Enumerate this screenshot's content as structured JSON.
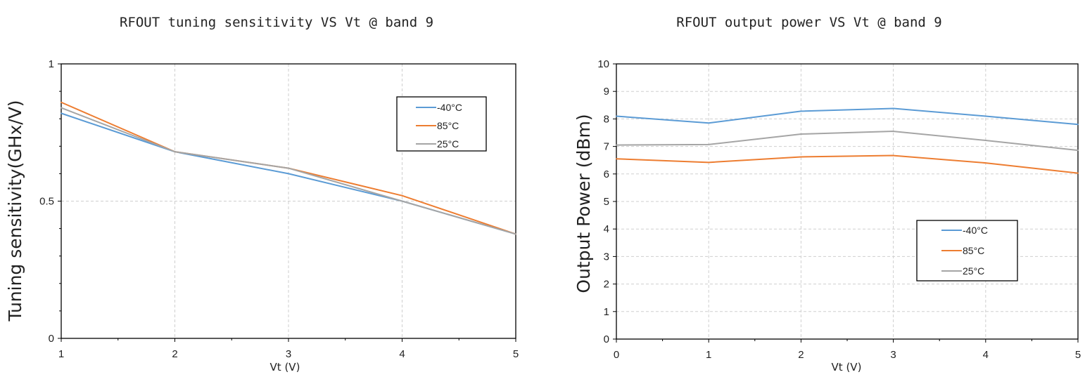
{
  "chart_data": [
    {
      "type": "line",
      "title": "RFOUT tuning sensitivity VS Vt @ band 9",
      "xlabel": "Vt (V)",
      "ylabel": "Tuning sensitivity(GHx/V)",
      "x": [
        1,
        2,
        3,
        4,
        5
      ],
      "xlim": [
        1,
        5
      ],
      "ylim": [
        0,
        1
      ],
      "x_ticks": [
        "1",
        "2",
        "3",
        "4",
        "5"
      ],
      "y_ticks": [
        "0",
        "0.5",
        "1"
      ],
      "grid": true,
      "legend_position": "top-right",
      "series": [
        {
          "name": "-40°C",
          "color": "#5b9bd5",
          "values": [
            0.82,
            0.68,
            0.6,
            0.5,
            0.38
          ]
        },
        {
          "name": "85°C",
          "color": "#ed7d31",
          "values": [
            0.86,
            0.68,
            0.62,
            0.52,
            0.38
          ]
        },
        {
          "name": "25°C",
          "color": "#a5a5a5",
          "values": [
            0.84,
            0.68,
            0.62,
            0.5,
            0.38
          ]
        }
      ]
    },
    {
      "type": "line",
      "title": "RFOUT output power VS Vt @ band 9",
      "xlabel": "Vt (V)",
      "ylabel": "Output Power (dBm)",
      "x": [
        0,
        1,
        2,
        3,
        4,
        5
      ],
      "xlim": [
        0,
        5
      ],
      "ylim": [
        0,
        10
      ],
      "x_ticks": [
        "0",
        "1",
        "2",
        "3",
        "4",
        "5"
      ],
      "y_ticks": [
        "0",
        "1",
        "2",
        "3",
        "4",
        "5",
        "6",
        "7",
        "8",
        "9",
        "10"
      ],
      "grid": true,
      "legend_position": "bottom-right",
      "series": [
        {
          "name": "-40°C",
          "color": "#5b9bd5",
          "values": [
            8.1,
            7.85,
            8.28,
            8.38,
            8.1,
            7.8
          ]
        },
        {
          "name": "85°C",
          "color": "#ed7d31",
          "values": [
            6.55,
            6.42,
            6.62,
            6.67,
            6.4,
            6.03
          ]
        },
        {
          "name": "25°C",
          "color": "#a5a5a5",
          "values": [
            7.05,
            7.07,
            7.45,
            7.55,
            7.22,
            6.86
          ]
        }
      ]
    }
  ]
}
